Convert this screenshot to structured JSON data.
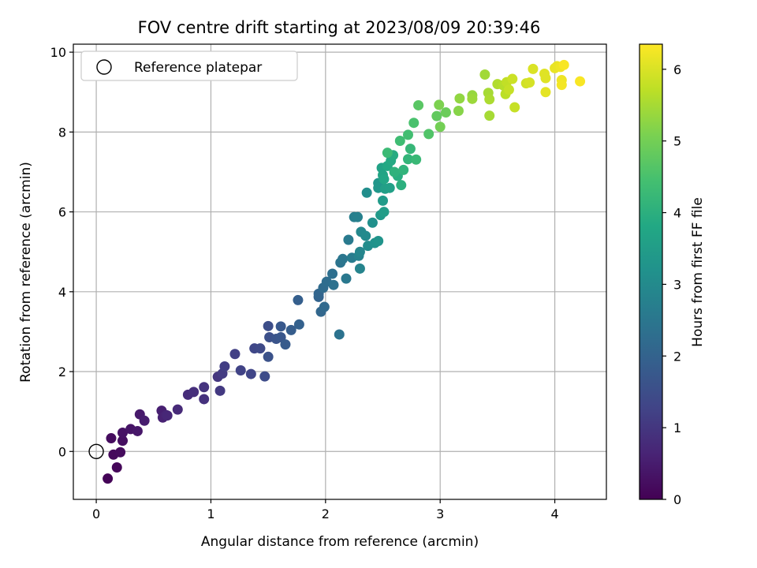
{
  "chart_data": {
    "type": "scatter",
    "title": "FOV centre drift starting at 2023/08/09 20:39:46",
    "xlabel": "Angular distance from reference (arcmin)",
    "ylabel": "Rotation from reference (arcmin)",
    "xlim": [
      -0.2,
      4.45
    ],
    "ylim": [
      -1.2,
      10.2
    ],
    "xticks": [
      0,
      1,
      2,
      3,
      4
    ],
    "yticks": [
      0,
      2,
      4,
      6,
      8,
      10
    ],
    "grid": true,
    "legend": {
      "placement": "top-left",
      "entries": [
        "Reference platepar"
      ]
    },
    "reference_point": {
      "x": 0,
      "y": 0,
      "label": "Reference platepar"
    },
    "colorbar": {
      "label": "Hours from first FF file",
      "colormap": "viridis",
      "range": [
        0,
        6.35
      ],
      "ticks": [
        0,
        1,
        2,
        3,
        4,
        5,
        6
      ]
    },
    "points": [
      [
        0.1,
        -0.68,
        0.05
      ],
      [
        0.18,
        -0.4,
        0.1
      ],
      [
        0.15,
        -0.08,
        0.15
      ],
      [
        0.21,
        -0.02,
        0.18
      ],
      [
        0.13,
        0.33,
        0.2
      ],
      [
        0.23,
        0.27,
        0.25
      ],
      [
        0.23,
        0.47,
        0.3
      ],
      [
        0.3,
        0.56,
        0.35
      ],
      [
        0.36,
        0.51,
        0.4
      ],
      [
        0.38,
        0.93,
        0.45
      ],
      [
        0.42,
        0.77,
        0.5
      ],
      [
        0.57,
        1.02,
        0.55
      ],
      [
        0.58,
        0.85,
        0.6
      ],
      [
        0.61,
        0.91,
        0.65
      ],
      [
        0.62,
        0.9,
        0.7
      ],
      [
        0.71,
        1.05,
        0.75
      ],
      [
        0.8,
        1.42,
        0.8
      ],
      [
        0.85,
        1.49,
        0.85
      ],
      [
        0.94,
        1.31,
        0.9
      ],
      [
        0.94,
        1.61,
        0.95
      ],
      [
        1.06,
        1.87,
        1.0
      ],
      [
        1.08,
        1.52,
        1.05
      ],
      [
        1.1,
        1.95,
        1.1
      ],
      [
        1.12,
        2.13,
        1.15
      ],
      [
        1.21,
        2.44,
        1.2
      ],
      [
        1.26,
        2.03,
        1.25
      ],
      [
        1.35,
        1.94,
        1.3
      ],
      [
        1.38,
        2.58,
        1.35
      ],
      [
        1.43,
        2.58,
        1.4
      ],
      [
        1.47,
        1.88,
        1.45
      ],
      [
        1.5,
        3.14,
        1.5
      ],
      [
        1.51,
        2.86,
        1.55
      ],
      [
        1.5,
        2.37,
        1.6
      ],
      [
        1.57,
        2.82,
        1.65
      ],
      [
        1.61,
        2.86,
        1.7
      ],
      [
        1.61,
        3.13,
        1.75
      ],
      [
        1.65,
        2.68,
        1.8
      ],
      [
        1.7,
        3.04,
        1.85
      ],
      [
        1.76,
        3.79,
        1.9
      ],
      [
        1.77,
        3.18,
        1.95
      ],
      [
        1.94,
        3.87,
        2.0
      ],
      [
        1.94,
        3.95,
        2.05
      ],
      [
        1.96,
        3.5,
        2.1
      ],
      [
        1.99,
        3.62,
        2.15
      ],
      [
        1.98,
        4.1,
        2.2
      ],
      [
        2.01,
        4.25,
        2.25
      ],
      [
        2.06,
        4.45,
        2.3
      ],
      [
        2.07,
        4.17,
        2.35
      ],
      [
        2.12,
        2.93,
        2.4
      ],
      [
        2.13,
        4.73,
        2.45
      ],
      [
        2.15,
        4.82,
        2.5
      ],
      [
        2.18,
        4.33,
        2.55
      ],
      [
        2.2,
        5.3,
        2.6
      ],
      [
        2.23,
        4.85,
        2.65
      ],
      [
        2.25,
        5.87,
        2.7
      ],
      [
        2.28,
        5.87,
        2.75
      ],
      [
        2.29,
        4.9,
        2.8
      ],
      [
        2.3,
        4.58,
        2.85
      ],
      [
        2.3,
        5.0,
        2.9
      ],
      [
        2.31,
        5.5,
        2.95
      ],
      [
        2.35,
        5.4,
        3.0
      ],
      [
        2.37,
        5.15,
        3.05
      ],
      [
        2.36,
        6.48,
        3.1
      ],
      [
        2.41,
        5.73,
        3.15
      ],
      [
        2.43,
        5.22,
        3.2
      ],
      [
        2.46,
        5.27,
        3.25
      ],
      [
        2.46,
        6.72,
        3.3
      ],
      [
        2.46,
        6.6,
        3.35
      ],
      [
        2.48,
        5.92,
        3.4
      ],
      [
        2.5,
        6.28,
        3.45
      ],
      [
        2.51,
        6.0,
        3.5
      ],
      [
        2.52,
        6.58,
        3.55
      ],
      [
        2.56,
        6.6,
        3.6
      ],
      [
        2.49,
        7.1,
        3.65
      ],
      [
        2.5,
        6.92,
        3.7
      ],
      [
        2.51,
        6.82,
        3.75
      ],
      [
        2.54,
        7.15,
        3.8
      ],
      [
        2.57,
        7.28,
        3.85
      ],
      [
        2.59,
        7.42,
        3.9
      ],
      [
        2.63,
        6.9,
        3.95
      ],
      [
        2.66,
        6.67,
        4.0
      ],
      [
        2.6,
        7.0,
        4.05
      ],
      [
        2.68,
        7.05,
        4.1
      ],
      [
        2.72,
        7.32,
        4.15
      ],
      [
        2.74,
        7.58,
        4.2
      ],
      [
        2.79,
        7.31,
        4.25
      ],
      [
        2.54,
        7.48,
        4.3
      ],
      [
        2.65,
        7.78,
        4.35
      ],
      [
        2.72,
        7.93,
        4.4
      ],
      [
        2.77,
        8.23,
        4.5
      ],
      [
        2.9,
        7.95,
        4.6
      ],
      [
        2.81,
        8.67,
        4.7
      ],
      [
        2.97,
        8.4,
        4.8
      ],
      [
        3.05,
        8.49,
        4.9
      ],
      [
        3.0,
        8.13,
        5.0
      ],
      [
        2.99,
        8.68,
        5.1
      ],
      [
        3.16,
        8.53,
        5.2
      ],
      [
        3.17,
        8.84,
        5.3
      ],
      [
        3.28,
        8.92,
        5.35
      ],
      [
        3.28,
        8.83,
        5.4
      ],
      [
        3.39,
        9.44,
        5.45
      ],
      [
        3.42,
        8.98,
        5.5
      ],
      [
        3.43,
        8.41,
        5.5
      ],
      [
        3.43,
        8.82,
        5.55
      ],
      [
        3.5,
        9.2,
        5.6
      ],
      [
        3.55,
        9.17,
        5.65
      ],
      [
        3.57,
        8.95,
        5.7
      ],
      [
        3.58,
        9.25,
        5.75
      ],
      [
        3.65,
        8.62,
        5.8
      ],
      [
        3.6,
        9.06,
        5.8
      ],
      [
        3.63,
        9.33,
        5.85
      ],
      [
        3.75,
        9.22,
        5.9
      ],
      [
        3.78,
        9.24,
        5.95
      ],
      [
        3.81,
        9.58,
        6.0
      ],
      [
        3.91,
        9.46,
        6.05
      ],
      [
        3.92,
        9.35,
        6.05
      ],
      [
        3.92,
        9.0,
        6.1
      ],
      [
        4.0,
        9.6,
        6.15
      ],
      [
        4.02,
        9.65,
        6.15
      ],
      [
        4.05,
        9.63,
        6.2
      ],
      [
        4.06,
        9.3,
        6.2
      ],
      [
        4.06,
        9.18,
        6.25
      ],
      [
        4.08,
        9.68,
        6.3
      ],
      [
        4.22,
        9.27,
        6.3
      ]
    ]
  }
}
